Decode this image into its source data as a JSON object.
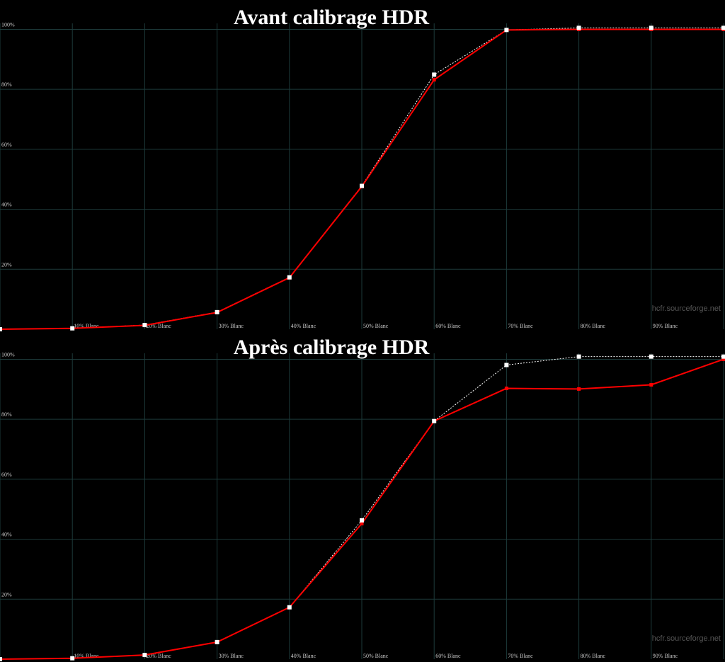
{
  "chart_data": [
    {
      "type": "line",
      "title": "Avant calibrage HDR",
      "watermark": "hcfr.sourceforge.net",
      "categories": [
        null,
        "10% Blanc",
        "20% Blanc",
        "30% Blanc",
        "40% Blanc",
        "50% Blanc",
        "60% Blanc",
        "70% Blanc",
        "80% Blanc",
        "90% Blanc",
        null
      ],
      "series": [
        {
          "color": "#ffffff",
          "line_style": "dotted",
          "values": [
            0,
            0.3,
            1.4,
            5.7,
            17.3,
            47.8,
            84.9,
            99.8,
            100.5,
            100.5,
            100.5
          ]
        },
        {
          "color": "#ff0000",
          "line_style": "solid",
          "values": [
            0,
            0.3,
            1.3,
            5.6,
            17.2,
            47.6,
            83.2,
            99.8,
            100,
            100,
            100
          ]
        }
      ],
      "ylim": [
        0,
        102
      ],
      "yticks": [
        {
          "value": 20,
          "label": "20%"
        },
        {
          "value": 40,
          "label": "40%"
        },
        {
          "value": 60,
          "label": "60%"
        },
        {
          "value": 80,
          "label": "80%"
        },
        {
          "value": 100,
          "label": "100%"
        }
      ],
      "grid": true
    },
    {
      "type": "line",
      "title": "Après calibrage HDR",
      "watermark": "hcfr.sourceforge.net",
      "categories": [
        null,
        "10% Blanc",
        "20% Blanc",
        "30% Blanc",
        "40% Blanc",
        "50% Blanc",
        "60% Blanc",
        "70% Blanc",
        "80% Blanc",
        "90% Blanc",
        null
      ],
      "series": [
        {
          "color": "#ffffff",
          "line_style": "dotted",
          "values": [
            0,
            0.3,
            1.4,
            5.7,
            17.3,
            46.3,
            79.4,
            98.1,
            100.9,
            100.9,
            100.9
          ]
        },
        {
          "color": "#ff0000",
          "line_style": "solid",
          "values": [
            0,
            0.3,
            1.4,
            5.7,
            17.3,
            45.2,
            79.4,
            90.3,
            90.1,
            91.5,
            100
          ]
        }
      ],
      "ylim": [
        0,
        102
      ],
      "yticks": [
        {
          "value": 20,
          "label": "20%"
        },
        {
          "value": 40,
          "label": "40%"
        },
        {
          "value": 60,
          "label": "60%"
        },
        {
          "value": 80,
          "label": "80%"
        },
        {
          "value": 100,
          "label": "100%"
        }
      ],
      "grid": true
    }
  ]
}
